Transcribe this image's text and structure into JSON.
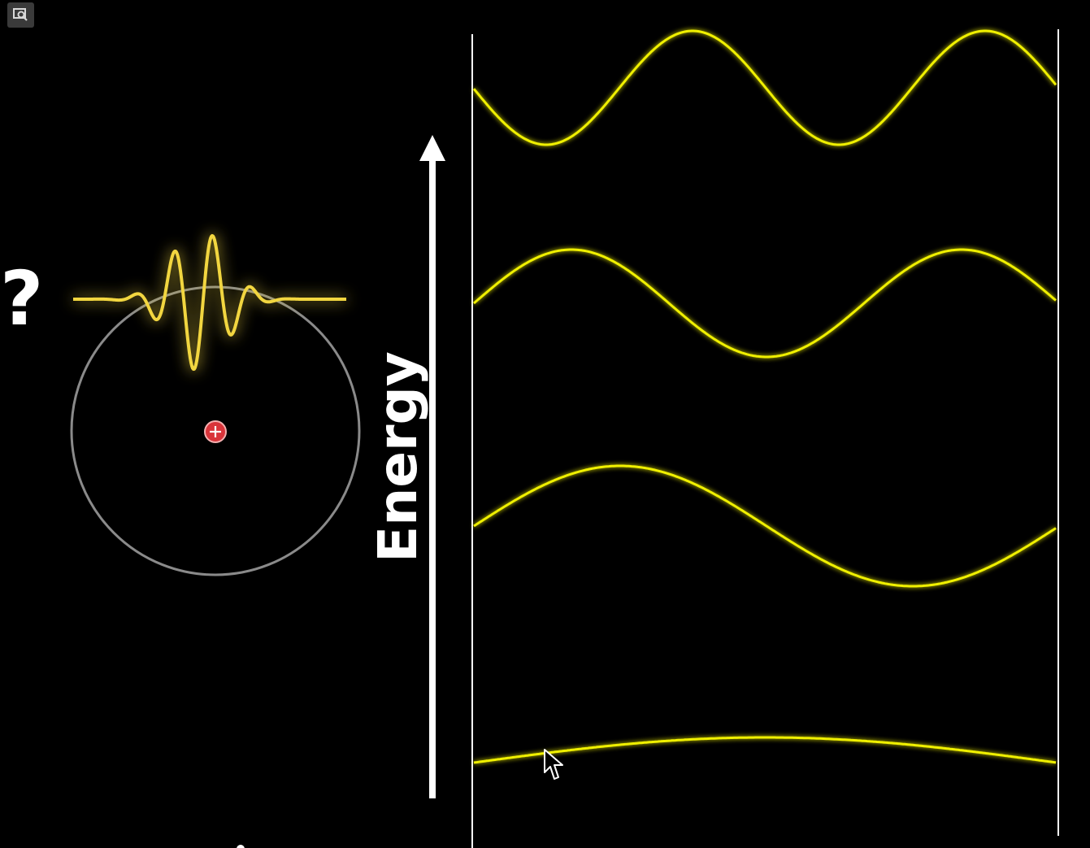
{
  "labels": {
    "question": "?",
    "axis": "Energy"
  },
  "atom": {
    "nucleus_symbol": "+",
    "nucleus_color": "#d9343a",
    "orbit_color": "#8a8a8a",
    "wave_color": "#f2d640"
  },
  "energy_levels": {
    "wave_color": "#f0f000",
    "half_wavelengths": [
      1,
      2,
      3,
      4
    ]
  },
  "colors": {
    "background": "#000000",
    "axis": "#ffffff"
  }
}
